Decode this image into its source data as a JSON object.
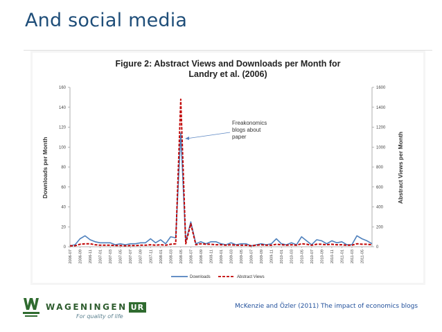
{
  "slide": {
    "title": "And social media",
    "citation": "McKenzie and Özler (2011) The impact of economics blogs"
  },
  "branding": {
    "wordmark": "WAGENINGEN",
    "wordmark_suffix": "UR",
    "tagline": "For quality of life",
    "brand_color": "#2f6b2f"
  },
  "chart_data": {
    "type": "line",
    "title_lines": [
      "Figure 2: Abstract Views and Downloads per Month for",
      "Landry et al. (2006)"
    ],
    "ylabel": "Downloads per Month",
    "ylabel_right": "Abstract Views per Month",
    "ylim": [
      0,
      160
    ],
    "ylim_right": [
      0,
      1600
    ],
    "yticks": [
      "0",
      "20",
      "40",
      "60",
      "80",
      "100",
      "120",
      "140",
      "160"
    ],
    "yticks_right": [
      "0",
      "200",
      "400",
      "600",
      "800",
      "1000",
      "1200",
      "1400",
      "1600"
    ],
    "x_labels": [
      "2006-07",
      "2006-09",
      "2006-11",
      "2007-01",
      "2007-03",
      "2007-05",
      "2007-07",
      "2007-09",
      "2007-11",
      "2008-01",
      "2008-03",
      "2008-05",
      "2008-07",
      "2008-09",
      "2008-11",
      "2009-01",
      "2009-03",
      "2009-05",
      "2009-07",
      "2009-09",
      "2009-11",
      "2010-01",
      "2010-03",
      "2010-05",
      "2010-07",
      "2010-09",
      "2010-11",
      "2011-01",
      "2011-03",
      "2011-05"
    ],
    "series": [
      {
        "name": "Downloads",
        "axis": "left",
        "color": "#4f81bd",
        "style": "solid",
        "values": [
          1,
          2,
          8,
          11,
          7,
          5,
          4,
          4,
          4,
          2,
          3,
          2,
          3,
          3,
          4,
          4,
          8,
          4,
          7,
          3,
          10,
          9,
          114,
          5,
          25,
          3,
          5,
          3,
          5,
          5,
          3,
          2,
          4,
          2,
          3,
          3,
          1,
          2,
          3,
          2,
          3,
          8,
          3,
          2,
          4,
          2,
          10,
          6,
          2,
          7,
          6,
          3,
          6,
          4,
          5,
          2,
          2,
          11,
          8,
          6,
          3
        ]
      },
      {
        "name": "Abstract Views",
        "axis": "right",
        "color": "#c00000",
        "style": "dashed",
        "values": [
          10,
          10,
          25,
          30,
          30,
          20,
          15,
          15,
          15,
          12,
          12,
          10,
          12,
          12,
          15,
          15,
          20,
          15,
          20,
          15,
          25,
          30,
          1480,
          30,
          230,
          20,
          30,
          25,
          25,
          20,
          20,
          15,
          20,
          15,
          15,
          15,
          10,
          15,
          20,
          15,
          15,
          25,
          20,
          15,
          20,
          15,
          30,
          25,
          15,
          25,
          25,
          20,
          25,
          20,
          20,
          15,
          15,
          30,
          25,
          25,
          20
        ]
      }
    ],
    "annotation": {
      "lines": [
        "Freakonomics",
        "blogs about",
        "paper"
      ]
    },
    "legend": [
      "Downloads",
      "Abstract Views"
    ],
    "legend_position": "bottom"
  }
}
